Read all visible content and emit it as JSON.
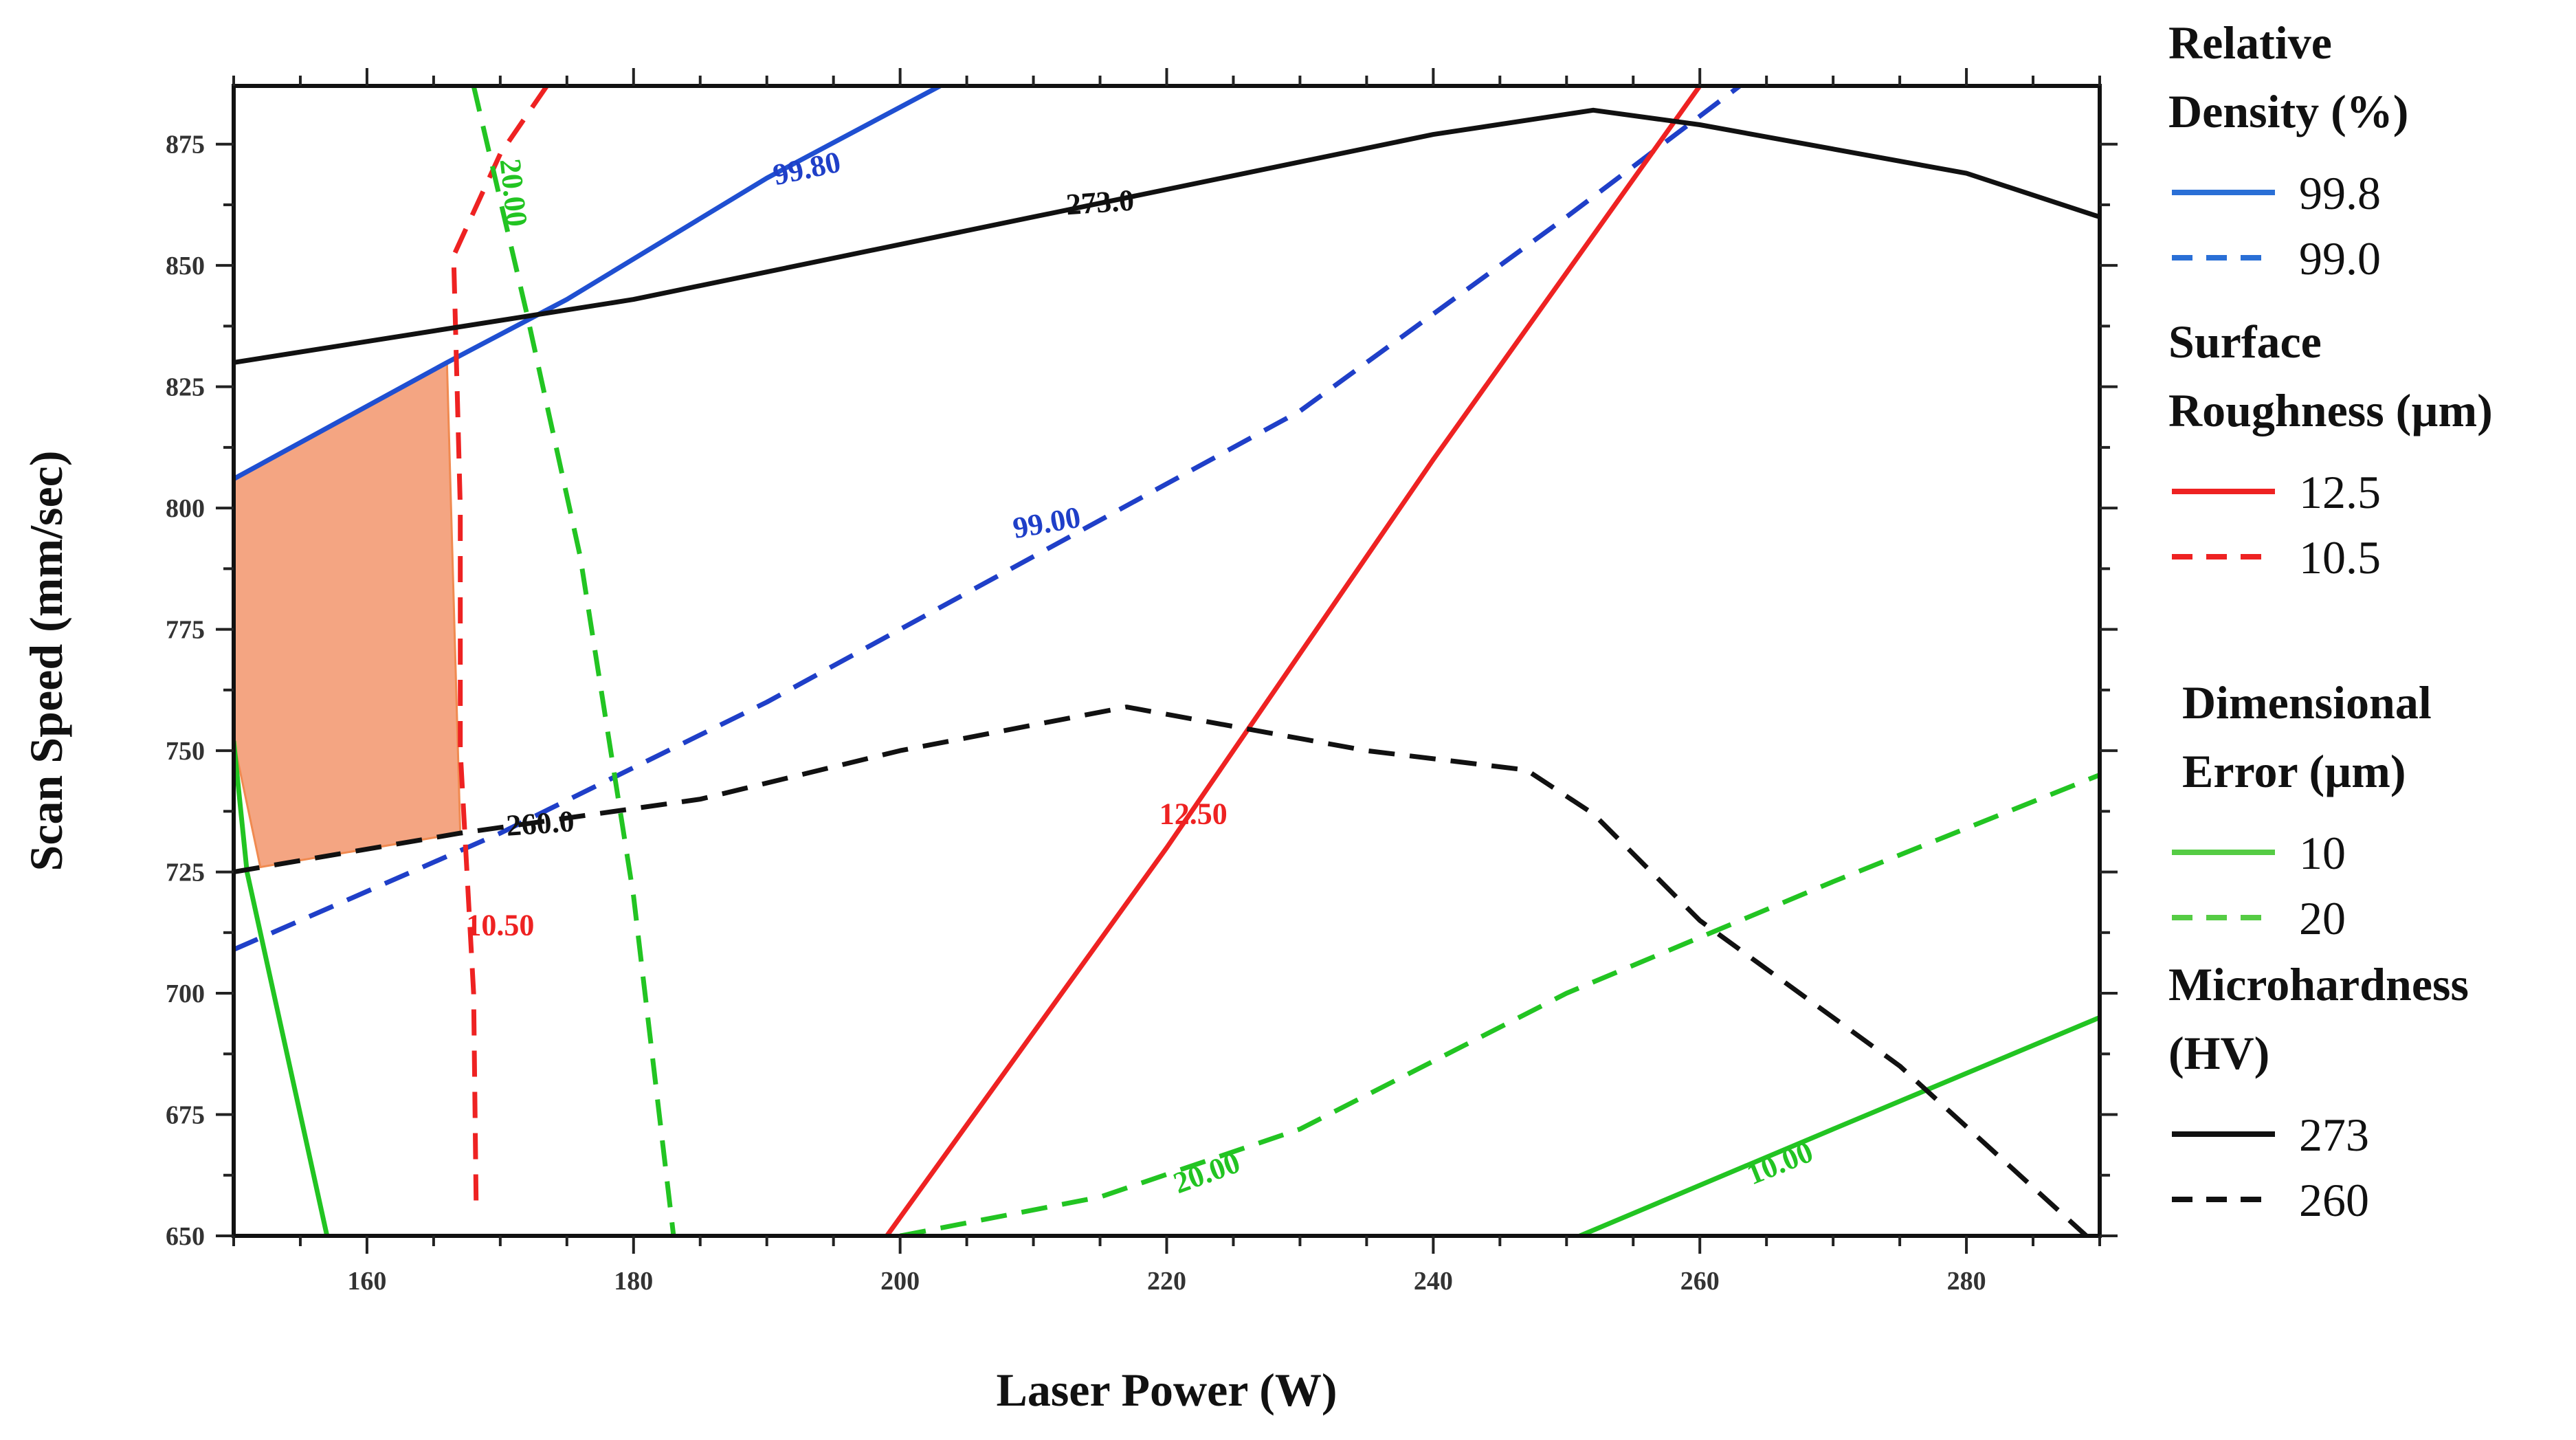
{
  "chart_data": {
    "type": "line",
    "xlabel": "Laser Power (W)",
    "ylabel": "Scan Speed (mm/sec)",
    "xlim": [
      150,
      290
    ],
    "ylim": [
      650,
      887
    ],
    "xticks": [
      160,
      180,
      200,
      220,
      240,
      260,
      280
    ],
    "yticks": [
      650,
      675,
      700,
      725,
      750,
      775,
      800,
      825,
      850,
      875
    ],
    "feasible_region": {
      "color": "#f4a582",
      "points": [
        [
          150,
          806
        ],
        [
          166,
          830
        ],
        [
          167,
          733
        ],
        [
          152,
          726
        ],
        [
          150,
          752
        ]
      ]
    },
    "series": [
      {
        "name": "Relative Density 99.8",
        "color": "#1f4fd1",
        "dash": false,
        "points": [
          [
            150,
            806
          ],
          [
            166,
            830
          ],
          [
            175,
            843
          ],
          [
            190,
            868
          ],
          [
            203,
            887
          ]
        ]
      },
      {
        "name": "Relative Density 99.0",
        "color": "#1f3fc8",
        "dash": true,
        "points": [
          [
            150,
            709
          ],
          [
            170,
            733
          ],
          [
            190,
            760
          ],
          [
            210,
            790
          ],
          [
            230,
            820
          ],
          [
            250,
            860
          ],
          [
            263,
            887
          ]
        ]
      },
      {
        "name": "Surface Roughness 12.5",
        "color": "#ee2222",
        "dash": false,
        "points": [
          [
            199,
            650
          ],
          [
            220,
            730
          ],
          [
            240,
            810
          ],
          [
            260,
            887
          ]
        ]
      },
      {
        "name": "Surface Roughness 10.5",
        "color": "#ee2222",
        "dash": true,
        "points": [
          [
            173.5,
            887
          ],
          [
            170,
            873
          ],
          [
            166.5,
            852
          ],
          [
            167,
            800
          ],
          [
            167,
            750
          ],
          [
            168,
            700
          ],
          [
            168.2,
            655
          ]
        ]
      },
      {
        "name": "Dimensional Error 10",
        "color": "#22c422",
        "dash": false,
        "points": [
          [
            150,
            752
          ],
          [
            151,
            725
          ],
          [
            153,
            700
          ],
          [
            155,
            675
          ],
          [
            157,
            650
          ]
        ]
      },
      {
        "name": "Dimensional Error 10 (lower right)",
        "color": "#22c422",
        "dash": false,
        "points": [
          [
            251,
            650
          ],
          [
            270,
            672
          ],
          [
            290,
            695
          ]
        ]
      },
      {
        "name": "Dimensional Error 20",
        "color": "#22c422",
        "dash": true,
        "points": [
          [
            168,
            887
          ],
          [
            172,
            840
          ],
          [
            176,
            790
          ],
          [
            180,
            720
          ],
          [
            183,
            650
          ]
        ]
      },
      {
        "name": "Dimensional Error 20 (lower right)",
        "color": "#22c422",
        "dash": true,
        "points": [
          [
            200,
            650
          ],
          [
            215,
            658
          ],
          [
            230,
            672
          ],
          [
            250,
            700
          ],
          [
            270,
            723
          ],
          [
            290,
            745
          ]
        ]
      },
      {
        "name": "Microhardness 273",
        "color": "#111111",
        "dash": false,
        "points": [
          [
            150,
            830
          ],
          [
            180,
            843
          ],
          [
            210,
            860
          ],
          [
            240,
            877
          ],
          [
            252,
            882
          ],
          [
            260,
            879
          ],
          [
            280,
            869
          ],
          [
            290,
            860
          ]
        ]
      },
      {
        "name": "Microhardness 260",
        "color": "#111111",
        "dash": true,
        "points": [
          [
            150,
            725
          ],
          [
            167,
            733
          ],
          [
            185,
            740
          ],
          [
            200,
            750
          ],
          [
            217,
            759
          ],
          [
            235,
            750
          ],
          [
            247,
            746
          ],
          [
            252,
            737
          ],
          [
            260,
            715
          ],
          [
            275,
            685
          ],
          [
            289,
            650
          ]
        ]
      }
    ],
    "contour_labels": [
      {
        "text": "99.80",
        "x": 193,
        "y": 870,
        "color": "#1f3fc8",
        "angle": -12
      },
      {
        "text": "99.00",
        "x": 211,
        "y": 797,
        "color": "#1f3fc8",
        "angle": -10
      },
      {
        "text": "273.0",
        "x": 215,
        "y": 863,
        "color": "#111111",
        "angle": -4
      },
      {
        "text": "260.0",
        "x": 173,
        "y": 735,
        "color": "#111111",
        "angle": -4
      },
      {
        "text": "12.50",
        "x": 222,
        "y": 737,
        "color": "#ee2222",
        "angle": 0
      },
      {
        "text": "10.50",
        "x": 170,
        "y": 714,
        "color": "#ee2222",
        "angle": 0
      },
      {
        "text": "20.00",
        "x": 171,
        "y": 865,
        "color": "#22c422",
        "angle": 84
      },
      {
        "text": "20.00",
        "x": 223,
        "y": 663,
        "color": "#22c422",
        "angle": -20
      },
      {
        "text": "10.00",
        "x": 266,
        "y": 665,
        "color": "#22c422",
        "angle": -22
      }
    ]
  },
  "legend": {
    "groups": [
      {
        "title_lines": [
          "Relative",
          "Density (%)"
        ],
        "entries": [
          {
            "label": "99.8",
            "color": "#2a6fd6",
            "dash": false
          },
          {
            "label": "99.0",
            "color": "#2a6fd6",
            "dash": true
          }
        ]
      },
      {
        "title_lines": [
          "Surface",
          "Roughness (µm)"
        ],
        "entries": [
          {
            "label": "12.5",
            "color": "#ee2222",
            "dash": false
          },
          {
            "label": "10.5",
            "color": "#ee2222",
            "dash": true
          }
        ]
      },
      {
        "title_lines": [
          "Dimensional",
          "Error  (µm)"
        ],
        "entries": [
          {
            "label": "10",
            "color": "#55cc44",
            "dash": false
          },
          {
            "label": "20",
            "color": "#55cc44",
            "dash": true
          }
        ]
      },
      {
        "title_lines": [
          "Microhardness",
          "(HV)"
        ],
        "entries": [
          {
            "label": "273",
            "color": "#111111",
            "dash": false
          },
          {
            "label": "260",
            "color": "#111111",
            "dash": true
          }
        ]
      }
    ]
  }
}
